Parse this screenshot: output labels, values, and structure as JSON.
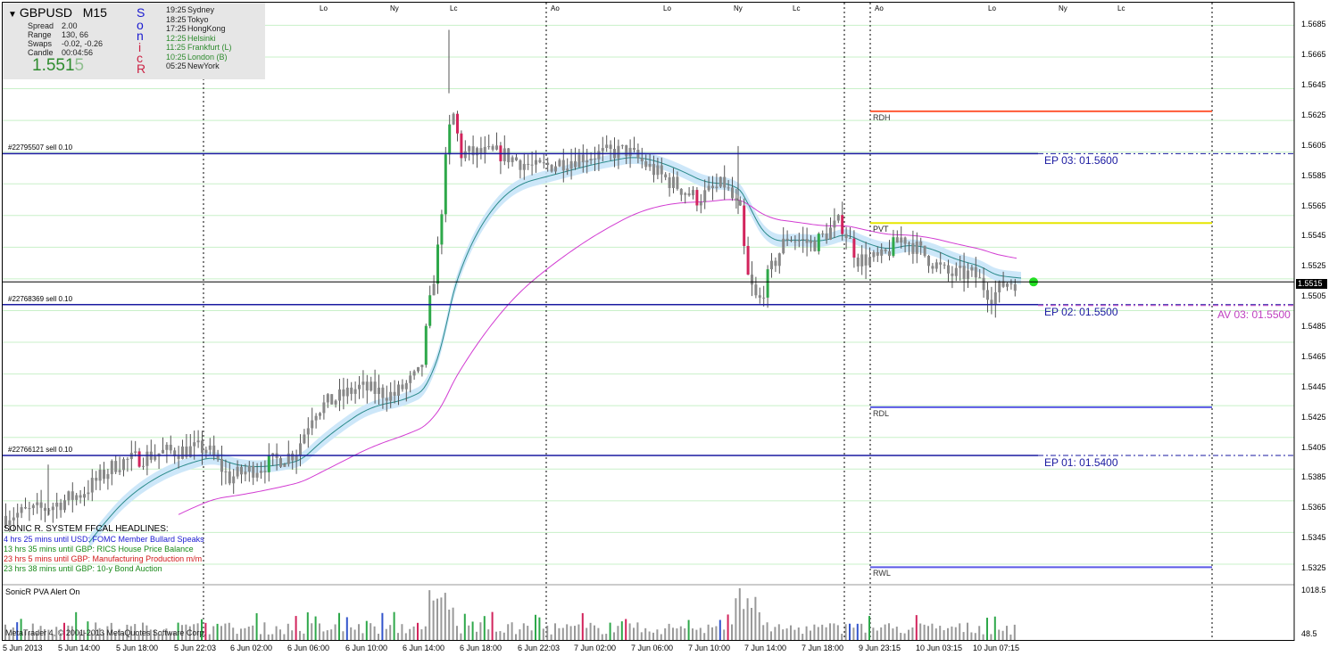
{
  "symbol": "GBPUSD",
  "timeframe": "M15",
  "info": [
    {
      "k": "Spread",
      "v": "2.00"
    },
    {
      "k": "Range",
      "v": "130, 66"
    },
    {
      "k": "Swaps",
      "v": "-0.02, -0.26"
    },
    {
      "k": "Candle",
      "v": "00:04:56"
    }
  ],
  "price_main": "1.551",
  "price_tail": "5",
  "sonic_letters": [
    "S",
    "o",
    "n",
    "i",
    "c",
    "R"
  ],
  "sessions": [
    {
      "time": "19:25",
      "name": "Sydney",
      "color": "#222222"
    },
    {
      "time": "18:25",
      "name": "Tokyo",
      "color": "#222222"
    },
    {
      "time": "17:25",
      "name": "HongKong",
      "color": "#222222"
    },
    {
      "time": "12:25",
      "name": "Helsinki",
      "color": "#2e8b2e"
    },
    {
      "time": "11:25",
      "name": "Frankfurt  (L)",
      "color": "#2e8b2e"
    },
    {
      "time": "10:25",
      "name": "London  (B)",
      "color": "#2e8b2e"
    },
    {
      "time": "05:25",
      "name": "NewYork",
      "color": "#222222"
    }
  ],
  "session_markers": [
    {
      "label": "Lo",
      "x": 358
    },
    {
      "label": "Ny",
      "x": 437
    },
    {
      "label": "Lc",
      "x": 504
    },
    {
      "label": "Ao",
      "x": 617
    },
    {
      "label": "Lo",
      "x": 743
    },
    {
      "label": "Ny",
      "x": 822
    },
    {
      "label": "Lc",
      "x": 888
    },
    {
      "label": "Ao",
      "x": 980
    },
    {
      "label": "Lo",
      "x": 1107
    },
    {
      "label": "Ny",
      "x": 1186
    },
    {
      "label": "Lc",
      "x": 1252
    }
  ],
  "orders": [
    {
      "label": "#22795507 sell 0.10",
      "price": 1.56
    },
    {
      "label": "#22768369 sell 0.10",
      "price": 1.55
    },
    {
      "label": "#22766121 sell 0.10",
      "price": 1.54
    }
  ],
  "ep_labels": [
    {
      "label": "EP 03:  01.5600",
      "price": 1.56
    },
    {
      "label": "EP 02:  01.5500",
      "price": 1.55
    },
    {
      "label": "EP 01:  01.5400",
      "price": 1.54
    }
  ],
  "av_label": "AV 03:  01.5500",
  "levels": [
    {
      "label": "RDH",
      "price": 1.5628,
      "color": "#ff5a36"
    },
    {
      "label": "PVT",
      "price": 1.5554,
      "color": "#e6e600"
    },
    {
      "label": "RDL",
      "price": 1.5432,
      "color": "#5a5ae6"
    },
    {
      "label": "RWL",
      "price": 1.5326,
      "color": "#5a5ae6"
    }
  ],
  "current_price": "1.5515",
  "y_ticks": [
    "1.5685",
    "1.5665",
    "1.5645",
    "1.5625",
    "1.5605",
    "1.5585",
    "1.5565",
    "1.5545",
    "1.5525",
    "1.5505",
    "1.5485",
    "1.5465",
    "1.5445",
    "1.5425",
    "1.5405",
    "1.5385",
    "1.5365",
    "1.5345",
    "1.5325"
  ],
  "x_ticks": [
    "5 Jun 2013",
    "5 Jun 14:00",
    "5 Jun 18:00",
    "5 Jun 22:03",
    "6 Jun 02:00",
    "6 Jun 06:00",
    "6 Jun 10:00",
    "6 Jun 14:00",
    "6 Jun 18:00",
    "6 Jun 22:03",
    "7 Jun 02:00",
    "7 Jun 06:00",
    "7 Jun 10:00",
    "7 Jun 14:00",
    "7 Jun 18:00",
    "9 Jun 23:15",
    "10 Jun 03:15",
    "10 Jun 07:15"
  ],
  "headlines_title": "SONIC R. SYSTEM  FFCAL HEADLINES:",
  "headlines": [
    {
      "text": "4 hrs 25 mins until USD: FOMC Member Bullard Speaks",
      "color": "#1a1ad0"
    },
    {
      "text": "13 hrs 35 mins until GBP: RICS House Price Balance",
      "color": "#1a8a1a"
    },
    {
      "text": "23 hrs 5 mins until GBP: Manufacturing Production m/m",
      "color": "#d01a1a"
    },
    {
      "text": "23 hrs 38 mins until GBP: 10-y Bond Auction",
      "color": "#1a8a1a"
    }
  ],
  "pva_title": "SonicR PVA    Alert On",
  "pva_scale": [
    "1018.5",
    "48.5"
  ],
  "copyright": "MetaTrader 4, © 2001-2013 MetaQuotes Software Corp.",
  "colors": {
    "bull": "#2ea84a",
    "bear": "#d2245c",
    "neutral": "#888888",
    "ema": "#d23cd2",
    "band": "#c8e4f8",
    "order_line": "#1a1aa0"
  },
  "chart_data": {
    "type": "candlestick",
    "symbol": "GBPUSD",
    "timeframe": "M15",
    "ylim": [
      1.5315,
      1.57
    ],
    "key_points": [
      {
        "time": "5 Jun 2013",
        "price": 1.536
      },
      {
        "time": "5 Jun 18:00",
        "price": 1.54
      },
      {
        "time": "6 Jun 02:00",
        "price": 1.539
      },
      {
        "time": "6 Jun 10:00",
        "price": 1.5445
      },
      {
        "time": "6 Jun 14:00",
        "price": 1.55
      },
      {
        "time": "6 Jun 18:00",
        "price": 1.56
      },
      {
        "time": "7 Jun 06:00",
        "price": 1.5595
      },
      {
        "time": "7 Jun 10:00",
        "price": 1.5575
      },
      {
        "time": "7 Jun 14:00",
        "price": 1.551
      },
      {
        "time": "7 Jun 18:00",
        "price": 1.5555
      },
      {
        "time": "10 Jun 07:15",
        "price": 1.5515
      }
    ]
  }
}
